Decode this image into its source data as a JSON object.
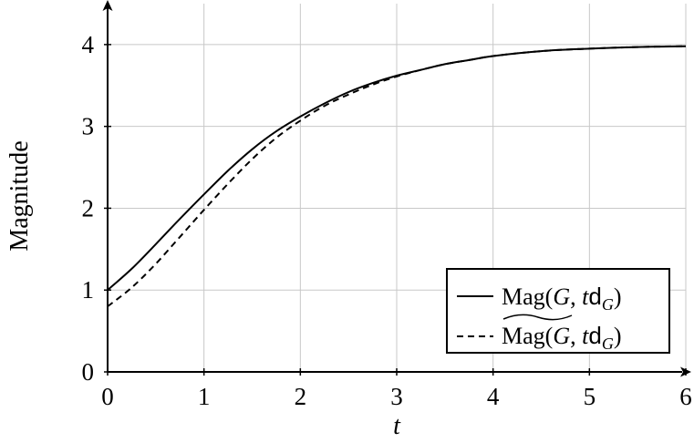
{
  "chart_data": {
    "type": "line",
    "title": "",
    "xlabel": "t",
    "ylabel": "Magnitude",
    "xlim": [
      0,
      6
    ],
    "ylim": [
      0,
      4.5
    ],
    "x_ticks": [
      0,
      1,
      2,
      3,
      4,
      5,
      6
    ],
    "y_ticks": [
      0,
      1,
      2,
      3,
      4
    ],
    "grid": true,
    "legend_position": "bottom-right",
    "x": [
      0,
      0.25,
      0.5,
      0.75,
      1,
      1.25,
      1.5,
      1.75,
      2,
      2.25,
      2.5,
      2.75,
      3,
      3.25,
      3.5,
      3.75,
      4,
      4.5,
      5,
      5.5,
      6
    ],
    "series": [
      {
        "name": "Mag(G, td_G)",
        "style": "solid",
        "color": "#000000",
        "values": [
          1.0,
          1.26,
          1.56,
          1.87,
          2.17,
          2.46,
          2.72,
          2.94,
          3.12,
          3.28,
          3.42,
          3.53,
          3.62,
          3.69,
          3.76,
          3.81,
          3.86,
          3.92,
          3.95,
          3.97,
          3.98
        ]
      },
      {
        "name": "Mag~(G, td_G)",
        "style": "dashed",
        "color": "#000000",
        "values": [
          0.8,
          1.03,
          1.32,
          1.65,
          1.98,
          2.3,
          2.6,
          2.86,
          3.07,
          3.25,
          3.39,
          3.51,
          3.61,
          3.69,
          3.76,
          3.81,
          3.86,
          3.92,
          3.95,
          3.97,
          3.98
        ]
      }
    ]
  }
}
